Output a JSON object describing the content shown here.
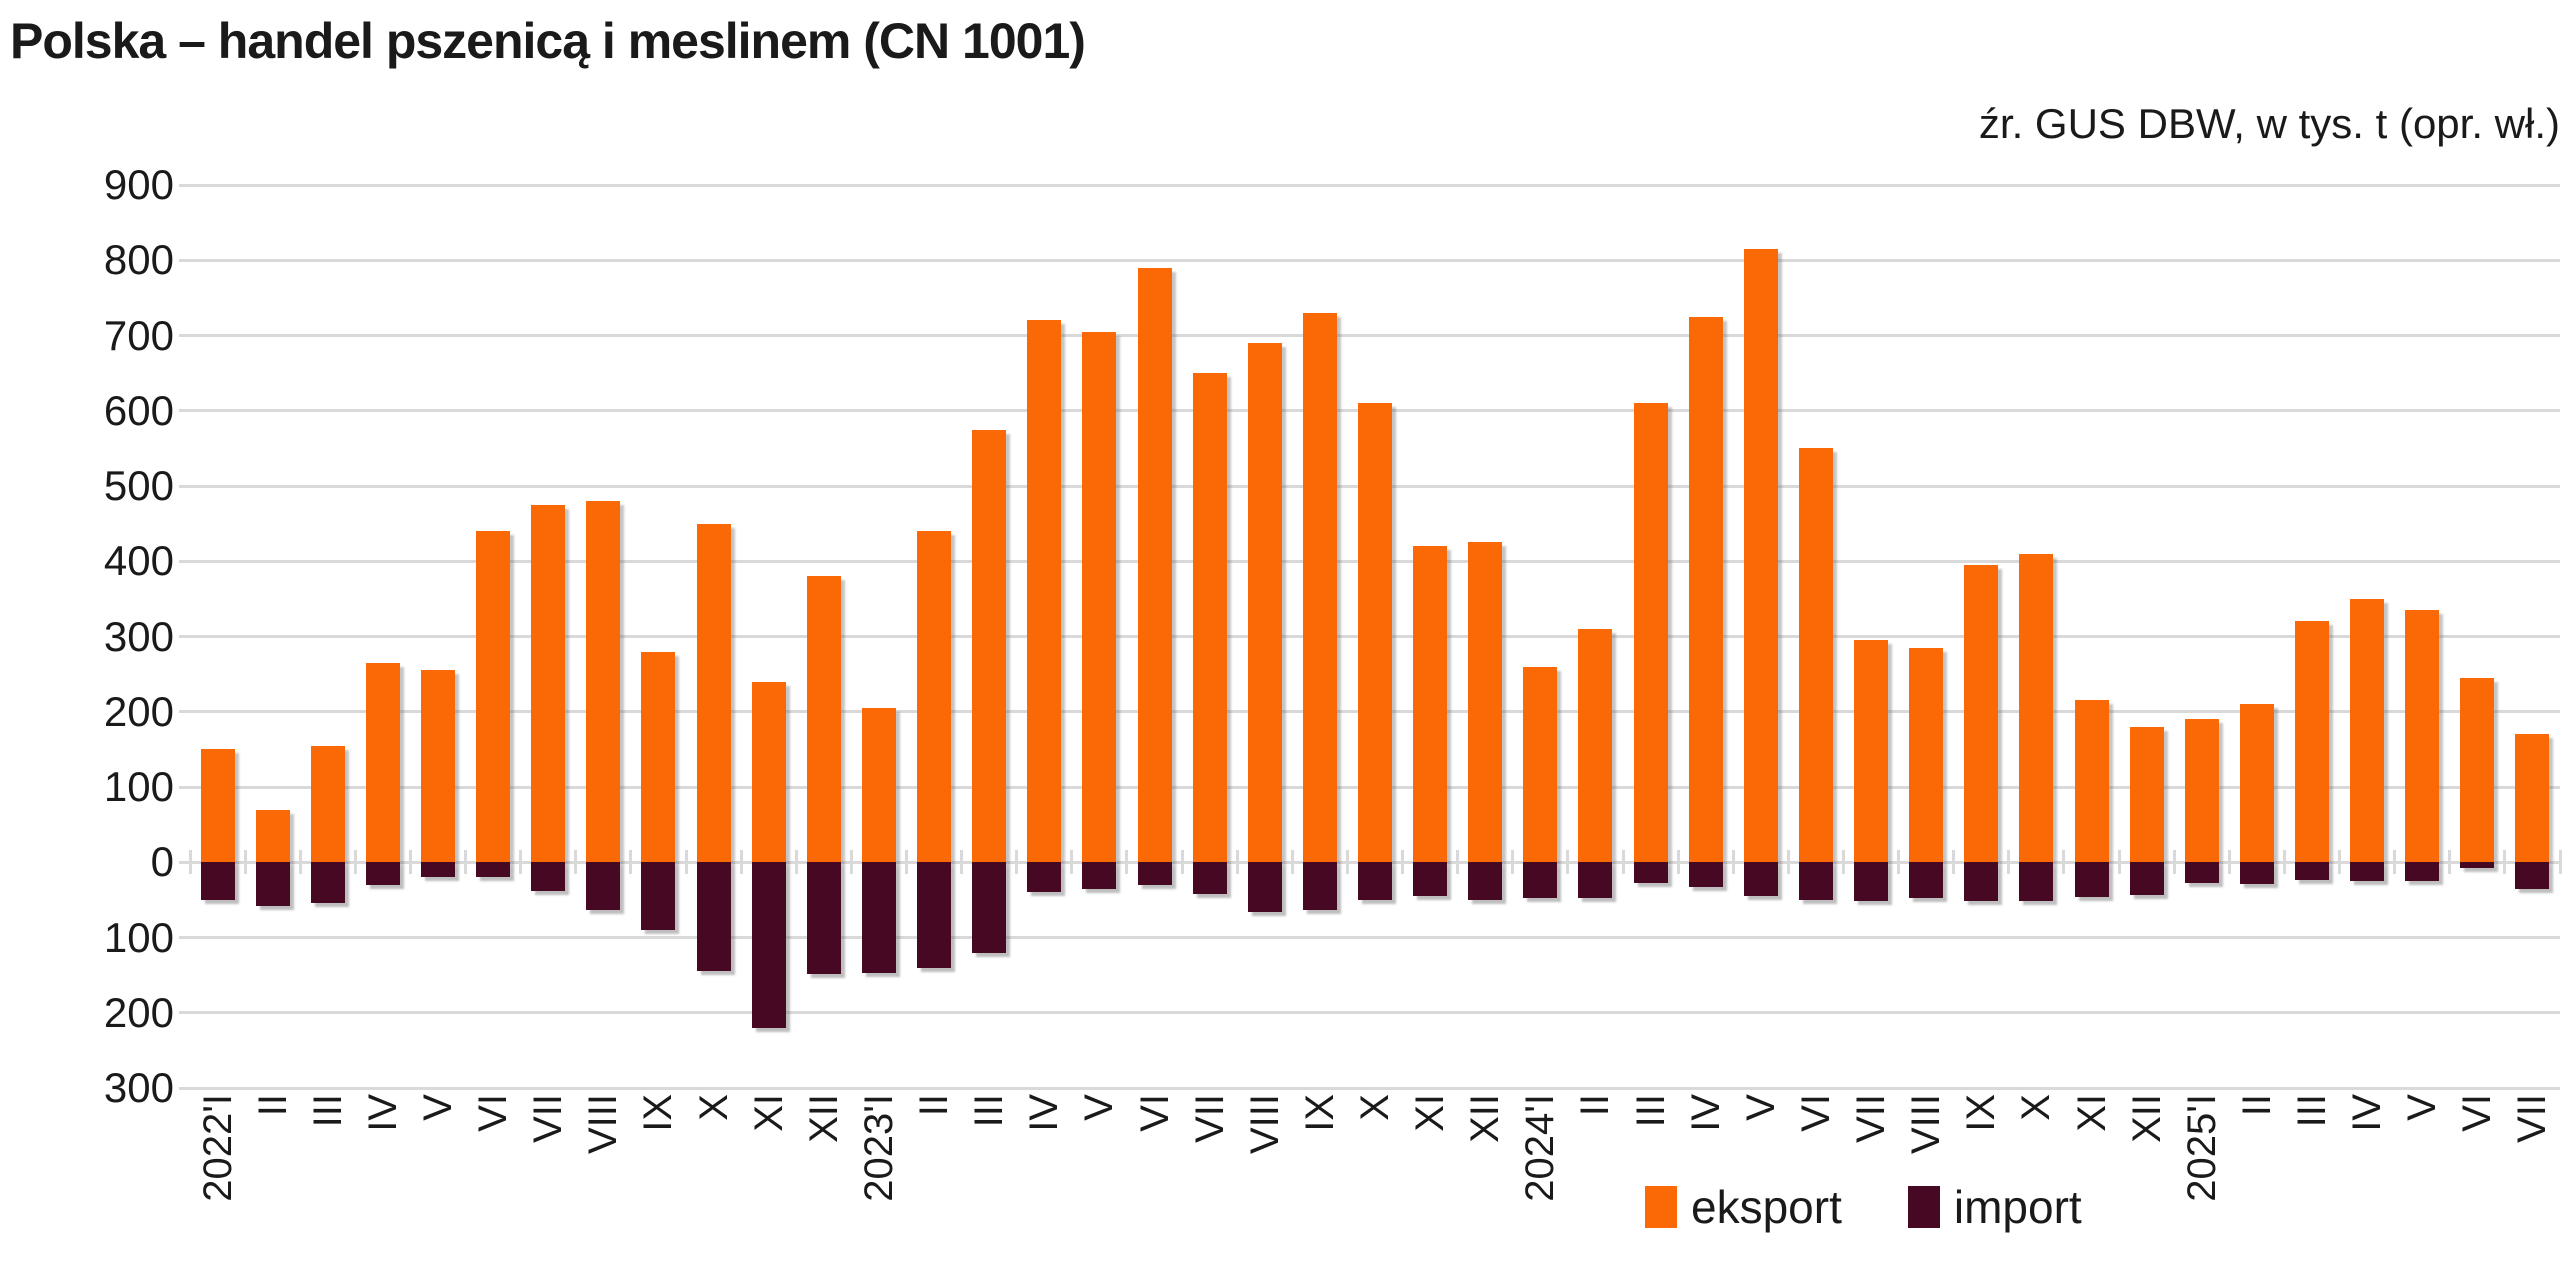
{
  "header": {
    "title": "Polska – handel pszenicą i meslinem (CN 1001)",
    "source_note": "źr. GUS DBW, w tys. t (opr. wł.)"
  },
  "colors": {
    "eksport": "#FB6906",
    "import": "#470824",
    "grid": "#D9D9D9",
    "text": "#1A1A1A",
    "background": "#FFFFFF"
  },
  "chart_data": {
    "type": "bar",
    "title": "Polska – handel pszenicą i meslinem (CN 1001)",
    "subtitle": "źr. GUS DBW, w tys. t (opr. wł.)",
    "unit": "tys. t",
    "grid": "horizontal",
    "legend_position": "bottom-right",
    "y_axis": {
      "min": -300,
      "max": 900,
      "step": 100,
      "tick_labels_absolute": true
    },
    "categories": [
      "2022'I",
      "II",
      "III",
      "IV",
      "V",
      "VI",
      "VII",
      "VIII",
      "IX",
      "X",
      "XI",
      "XII",
      "2023'I",
      "II",
      "III",
      "IV",
      "V",
      "VI",
      "VII",
      "VIII",
      "IX",
      "X",
      "XI",
      "XII",
      "2024'I",
      "II",
      "III",
      "IV",
      "V",
      "VI",
      "VII",
      "VIII",
      "IX",
      "X",
      "XI",
      "XII",
      "2025'I",
      "II",
      "III",
      "IV",
      "V",
      "VI",
      "VII"
    ],
    "series": [
      {
        "name": "eksport",
        "color": "#FB6906",
        "values": [
          150,
          70,
          155,
          265,
          255,
          440,
          475,
          480,
          280,
          450,
          240,
          380,
          205,
          440,
          575,
          720,
          705,
          790,
          650,
          690,
          730,
          610,
          420,
          425,
          260,
          310,
          610,
          725,
          815,
          550,
          295,
          285,
          395,
          410,
          215,
          180,
          190,
          210,
          320,
          350,
          335,
          245,
          170
        ]
      },
      {
        "name": "import",
        "color": "#470824",
        "values": [
          -50,
          -58,
          -54,
          -30,
          -20,
          -20,
          -38,
          -64,
          -90,
          -145,
          -220,
          -148,
          -147,
          -140,
          -120,
          -40,
          -35,
          -30,
          -42,
          -66,
          -64,
          -50,
          -45,
          -50,
          -47,
          -47,
          -28,
          -33,
          -45,
          -50,
          -51,
          -48,
          -52,
          -52,
          -46,
          -44,
          -27,
          -29,
          -23,
          -25,
          -25,
          -8,
          -36
        ]
      }
    ]
  }
}
